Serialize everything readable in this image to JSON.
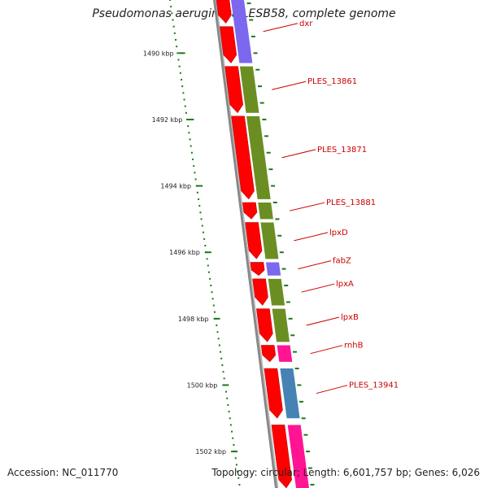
{
  "title": "Pseudomonas aeruginosa LESB58, complete genome",
  "footer": {
    "accession": "Accession: NC_011770",
    "stats": "Topology: circular; Length: 6,601,757 bp; Genes: 6,026"
  },
  "colors": {
    "forward_cds": "#ff0000",
    "backbone": "#888888",
    "tick": "#1a7a1a",
    "label": "#cc0000",
    "olive": "#6b8e23",
    "purple": "#7b68ee",
    "magenta": "#ff1493",
    "steelblue": "#4682b4"
  },
  "axis": {
    "start_kbp": 1488.4,
    "end_kbp": 1503.1,
    "tick_labels": [
      {
        "kbp": 1490,
        "text": "1490 kbp"
      },
      {
        "kbp": 1492,
        "text": "1492 kbp"
      },
      {
        "kbp": 1494,
        "text": "1494 kbp"
      },
      {
        "kbp": 1496,
        "text": "1496 kbp"
      },
      {
        "kbp": 1498,
        "text": "1498 kbp"
      },
      {
        "kbp": 1500,
        "text": "1500 kbp"
      },
      {
        "kbp": 1502,
        "text": "1502 kbp"
      }
    ]
  },
  "red_features": [
    {
      "start": 1488.4,
      "end": 1489.1
    },
    {
      "start": 1489.2,
      "end": 1490.3
    },
    {
      "start": 1490.4,
      "end": 1491.8
    },
    {
      "start": 1491.9,
      "end": 1494.4
    },
    {
      "start": 1494.5,
      "end": 1495.0
    },
    {
      "start": 1495.1,
      "end": 1496.2
    },
    {
      "start": 1496.3,
      "end": 1496.7
    },
    {
      "start": 1496.8,
      "end": 1497.6
    },
    {
      "start": 1497.7,
      "end": 1498.7
    },
    {
      "start": 1498.8,
      "end": 1499.3
    },
    {
      "start": 1499.5,
      "end": 1501.0
    },
    {
      "start": 1501.2,
      "end": 1503.1
    }
  ],
  "genes": [
    {
      "label": "dxr",
      "start": 1488.4,
      "end": 1490.3,
      "color": "purple"
    },
    {
      "label": "PLES_13861",
      "start": 1490.4,
      "end": 1491.8,
      "color": "olive"
    },
    {
      "label": "PLES_13871",
      "start": 1491.9,
      "end": 1494.4,
      "color": "olive"
    },
    {
      "label": "PLES_13881",
      "start": 1494.5,
      "end": 1495.0,
      "color": "olive"
    },
    {
      "label": "lpxD",
      "start": 1495.1,
      "end": 1496.2,
      "color": "olive"
    },
    {
      "label": "fabZ",
      "start": 1496.3,
      "end": 1496.7,
      "color": "purple"
    },
    {
      "label": "lpxA",
      "start": 1496.8,
      "end": 1497.6,
      "color": "olive"
    },
    {
      "label": "lpxB",
      "start": 1497.7,
      "end": 1498.7,
      "color": "olive"
    },
    {
      "label": "rnhB",
      "start": 1498.8,
      "end": 1499.3,
      "color": "magenta"
    },
    {
      "label": "PLES_13941",
      "start": 1499.5,
      "end": 1501.0,
      "color": "steelblue"
    },
    {
      "label": "",
      "start": 1501.2,
      "end": 1503.1,
      "color": "magenta"
    }
  ]
}
